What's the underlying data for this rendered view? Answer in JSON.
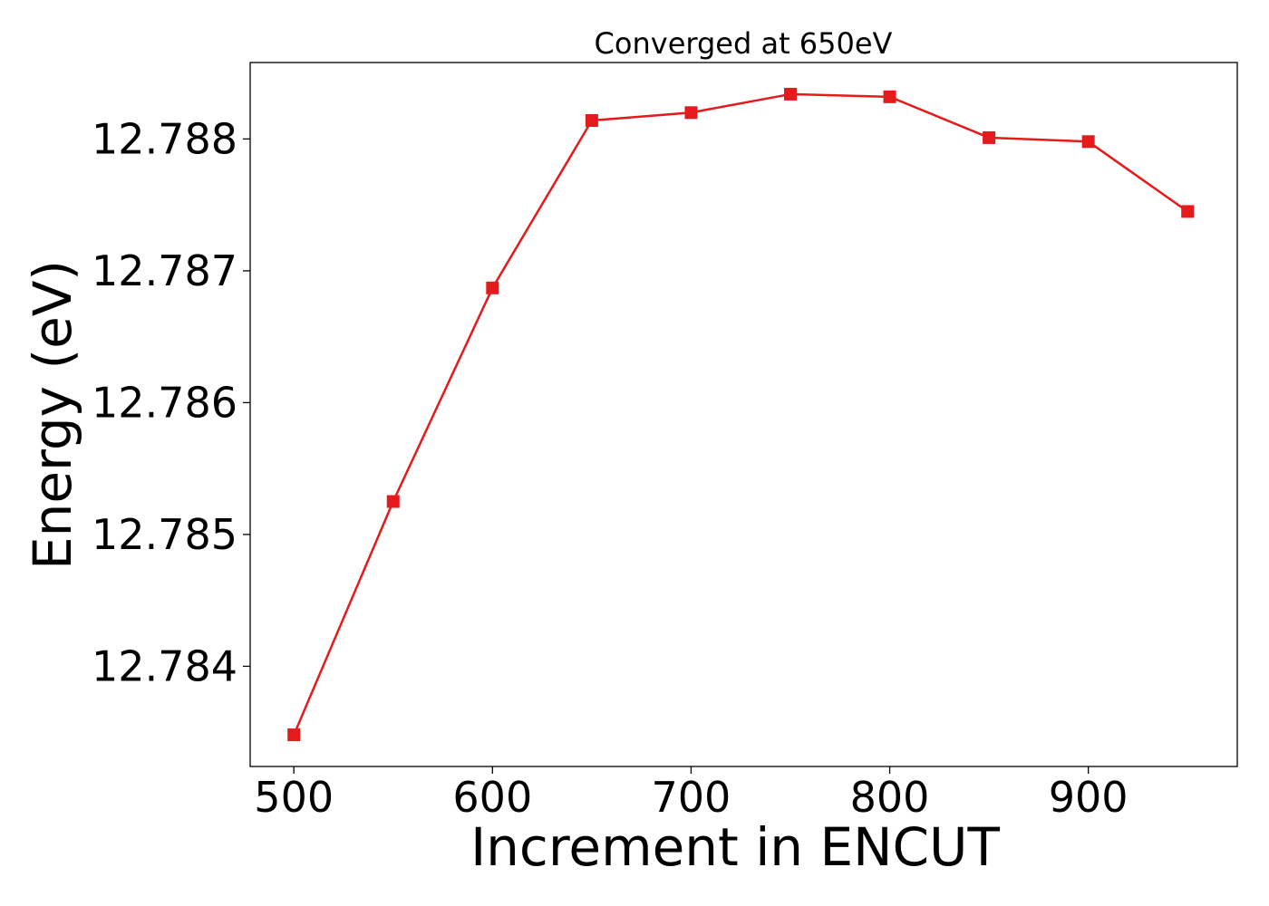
{
  "chart_data": {
    "type": "line",
    "title": "Converged at 650eV",
    "xlabel": "Increment in ENCUT",
    "ylabel": "Energy (eV)",
    "xlim": [
      478,
      975
    ],
    "ylim": [
      12.78324,
      12.78858
    ],
    "xticks": [
      500,
      600,
      700,
      800,
      900
    ],
    "yticks": [
      12.784,
      12.785,
      12.786,
      12.787,
      12.788
    ],
    "ytick_labels": [
      "12.784",
      "12.785",
      "12.786",
      "12.787",
      "12.788"
    ],
    "grid": false,
    "legend": "none",
    "series": [
      {
        "marker": "square",
        "color": "#e41a1c",
        "x": [
          500,
          550,
          600,
          650,
          700,
          750,
          800,
          850,
          900,
          950
        ],
        "y": [
          12.78348,
          12.78525,
          12.78687,
          12.78814,
          12.7882,
          12.78834,
          12.78832,
          12.78801,
          12.78798,
          12.78745
        ]
      }
    ]
  }
}
